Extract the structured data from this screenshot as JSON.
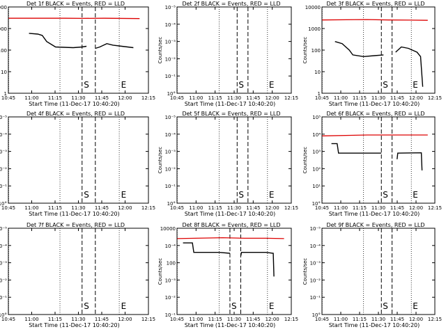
{
  "window": {
    "name": "RHESSI detector count-rate plots"
  },
  "colors": {
    "events": "#000000",
    "lld": "#dd0000",
    "frame": "#000000",
    "background": "#ffffff"
  },
  "chart_data": [
    {
      "id": "det-1f",
      "type": "line",
      "title": "Det 1f BLACK = Events, RED = LLD",
      "xlabel": "Start Time (11-Dec-17 10:40:20)",
      "ylabel": "Counts/sec",
      "xticks": [
        "10:45",
        "11:00",
        "11:15",
        "11:30",
        "11:45",
        "12:00",
        "12:15"
      ],
      "yticks": [
        "1",
        "10",
        "100",
        "1000",
        "10000"
      ],
      "ylim": [
        1,
        10000
      ],
      "grid": "vertical dotted",
      "markers": {
        "S": "S",
        "E": "E"
      },
      "series": [
        {
          "name": "LLD",
          "color": "red",
          "points": [
            [
              10.67,
              3000
            ],
            [
              11.3,
              3000
            ],
            [
              11.5,
              2950
            ],
            [
              11.75,
              3000
            ],
            [
              12.15,
              2900
            ]
          ]
        },
        {
          "name": "Events",
          "color": "black",
          "points": [
            [
              10.9,
              600
            ],
            [
              11.0,
              550
            ],
            [
              11.05,
              480
            ],
            [
              11.1,
              250
            ],
            [
              11.2,
              140
            ],
            [
              11.4,
              130
            ],
            [
              11.5,
              140
            ],
            [
              11.55,
              150
            ]
          ]
        },
        {
          "name": "Events",
          "color": "black",
          "points": [
            [
              11.65,
              120
            ],
            [
              11.7,
              140
            ],
            [
              11.78,
              200
            ],
            [
              11.85,
              170
            ],
            [
              11.95,
              150
            ],
            [
              12.08,
              130
            ]
          ]
        }
      ],
      "markerLines": {
        "dashed": [
          11.5,
          11.65
        ],
        "dotted": [
          10.67,
          11.25,
          11.92
        ]
      }
    },
    {
      "id": "det-2f",
      "type": "line",
      "title": "Det 2f BLACK = Events, RED = LLD",
      "xlabel": "Start Time (11-Dec-17 10:40:20)",
      "ylabel": "Counts/sec",
      "xticks": [
        "10:45",
        "11:00",
        "11:15",
        "11:30",
        "11:45",
        "12:00",
        "12:15"
      ],
      "yticks": [
        "10°",
        "10⁻¹",
        "10⁻²",
        "10⁻³",
        "10⁻⁴",
        "10⁻⁵"
      ],
      "ylim": [
        0,
        5
      ],
      "grid": "vertical dotted",
      "markers": {
        "S": "S",
        "E": "E"
      },
      "series": [],
      "markerLines": {
        "dashed": [
          11.5,
          11.65
        ],
        "dotted": [
          10.67,
          11.25,
          11.92
        ]
      }
    },
    {
      "id": "det-3f",
      "type": "line",
      "title": "Det 3f BLACK = Events, RED = LLD",
      "xlabel": "Start Time (11-Dec-17 10:40:20)",
      "ylabel": "Counts/sec",
      "xticks": [
        "10:45",
        "11:00",
        "11:15",
        "11:30",
        "11:45",
        "12:00",
        "12:15"
      ],
      "yticks": [
        "1",
        "10",
        "100",
        "1000",
        "10000"
      ],
      "ylim": [
        1,
        10000
      ],
      "grid": "vertical dotted",
      "markers": {
        "S": "S",
        "E": "E"
      },
      "series": [
        {
          "name": "LLD",
          "color": "red",
          "points": [
            [
              10.67,
              2500
            ],
            [
              11.3,
              2600
            ],
            [
              11.6,
              2500
            ],
            [
              11.9,
              2450
            ],
            [
              12.15,
              2400
            ]
          ]
        },
        {
          "name": "Events",
          "color": "black",
          "points": [
            [
              10.85,
              250
            ],
            [
              10.95,
              200
            ],
            [
              11.05,
              100
            ],
            [
              11.1,
              60
            ],
            [
              11.25,
              50
            ],
            [
              11.4,
              55
            ],
            [
              11.53,
              60
            ]
          ]
        },
        {
          "name": "Events",
          "color": "black",
          "points": [
            [
              11.7,
              80
            ],
            [
              11.78,
              140
            ],
            [
              11.88,
              120
            ],
            [
              12.0,
              80
            ],
            [
              12.05,
              50
            ],
            [
              12.08,
              2
            ]
          ]
        }
      ],
      "markerLines": {
        "dashed": [
          11.5,
          11.65
        ],
        "dotted": [
          10.67,
          11.25,
          11.92
        ]
      }
    },
    {
      "id": "det-4f",
      "type": "line",
      "title": "Det 4f BLACK = Events, RED = LLD",
      "xlabel": "Start Time (11-Dec-17 10:40:20)",
      "ylabel": "Counts/sec",
      "xticks": [
        "10:45",
        "11:00",
        "11:15",
        "11:30",
        "11:45",
        "12:00",
        "12:15"
      ],
      "yticks": [
        "10°",
        "10⁻¹",
        "10⁻²",
        "10⁻³",
        "10⁻⁴",
        "10⁻⁵"
      ],
      "ylim": [
        0,
        5
      ],
      "grid": "vertical dotted",
      "markers": {
        "S": "S",
        "E": "E"
      },
      "series": [],
      "markerLines": {
        "dashed": [
          11.5,
          11.65
        ],
        "dotted": [
          10.67,
          11.25,
          11.92
        ]
      }
    },
    {
      "id": "det-5f",
      "type": "line",
      "title": "Det 5f BLACK = Events, RED = LLD",
      "xlabel": "Start Time (11-Dec-17 10:40:20)",
      "ylabel": "Counts/sec",
      "xticks": [
        "10:45",
        "11:00",
        "11:15",
        "11:30",
        "11:45",
        "12:00",
        "12:15"
      ],
      "yticks": [
        "10°",
        "10⁻¹",
        "10⁻²",
        "10⁻³",
        "10⁻⁴",
        "10⁻⁵"
      ],
      "ylim": [
        0,
        5
      ],
      "grid": "vertical dotted",
      "markers": {
        "S": "S",
        "E": "E"
      },
      "series": [],
      "markerLines": {
        "dashed": [
          11.5,
          11.65
        ],
        "dotted": [
          10.67,
          11.25,
          11.92
        ]
      }
    },
    {
      "id": "det-6f",
      "type": "line",
      "title": "Det 6f BLACK = Events, RED = LLD",
      "xlabel": "Start Time (11-Dec-17 10:40:20)",
      "ylabel": "Counts/sec",
      "xticks": [
        "10:45",
        "11:00",
        "11:15",
        "11:30",
        "11:45",
        "12:00",
        "12:15"
      ],
      "yticks": [
        "10°",
        "10¹",
        "10²",
        "10³",
        "10⁴",
        "10⁵"
      ],
      "ylim": [
        0,
        5
      ],
      "grid": "vertical dotted",
      "markers": {
        "S": "S",
        "E": "E"
      },
      "series": [
        {
          "name": "LLD",
          "color": "red",
          "points": [
            [
              10.67,
              3.9
            ],
            [
              11.3,
              3.95
            ],
            [
              11.6,
              3.95
            ],
            [
              11.9,
              3.95
            ],
            [
              12.15,
              3.95
            ]
          ]
        },
        {
          "name": "Events",
          "color": "black",
          "points": [
            [
              10.8,
              3.45
            ],
            [
              10.88,
              3.45
            ],
            [
              10.9,
              2.9
            ],
            [
              11.25,
              2.9
            ],
            [
              11.5,
              2.9
            ]
          ]
        },
        {
          "name": "Events",
          "color": "black",
          "points": [
            [
              11.72,
              2.55
            ],
            [
              11.73,
              2.9
            ],
            [
              12.06,
              2.92
            ],
            [
              12.07,
              1.9
            ]
          ]
        }
      ],
      "markerLines": {
        "dashed": [
          11.5,
          11.65
        ],
        "dotted": [
          10.67,
          11.25,
          11.92
        ]
      }
    },
    {
      "id": "det-7f",
      "type": "line",
      "title": "Det 7f BLACK = Events, RED = LLD",
      "xlabel": "Start Time (11-Dec-17 10:40:20)",
      "ylabel": "Counts/sec",
      "xticks": [
        "10:45",
        "11:00",
        "11:15",
        "11:30",
        "11:45",
        "12:00",
        "12:15"
      ],
      "yticks": [
        "10°",
        "10⁻¹",
        "10⁻²",
        "10⁻³",
        "10⁻⁴",
        "10⁻⁵"
      ],
      "ylim": [
        0,
        5
      ],
      "grid": "vertical dotted",
      "markers": {
        "S": "S",
        "E": "E"
      },
      "series": [],
      "markerLines": {
        "dashed": [
          11.5,
          11.65
        ],
        "dotted": [
          10.67,
          11.25,
          11.92
        ]
      }
    },
    {
      "id": "det-8f",
      "type": "line",
      "title": "Det 8f BLACK = Events, RED = LLD",
      "xlabel": "Start Time (11-Dec-17 10:40:20)",
      "ylabel": "Counts/sec",
      "xticks": [
        "10:45",
        "11:00",
        "11:15",
        "11:30",
        "11:45",
        "12:00",
        "12:15"
      ],
      "yticks": [
        "10⁻¹",
        "10⁻²",
        "10⁻³",
        "100",
        "10⁻⁴",
        "10000"
      ],
      "ylim": [
        0,
        5
      ],
      "grid": "vertical dotted",
      "markers": {
        "S": "S",
        "E": "E"
      },
      "series": [
        {
          "name": "LLD",
          "color": "red",
          "points": [
            [
              10.67,
              4.4
            ],
            [
              11.3,
              4.45
            ],
            [
              11.6,
              4.42
            ],
            [
              11.9,
              4.42
            ],
            [
              12.15,
              4.4
            ]
          ]
        },
        {
          "name": "Events",
          "color": "black",
          "points": [
            [
              10.75,
              4.15
            ],
            [
              10.88,
              4.15
            ],
            [
              10.9,
              3.6
            ],
            [
              11.25,
              3.6
            ],
            [
              11.4,
              3.55
            ]
          ]
        },
        {
          "name": "Events",
          "color": "black",
          "points": [
            [
              11.55,
              3.4
            ],
            [
              11.56,
              3.6
            ],
            [
              11.9,
              3.6
            ],
            [
              12.0,
              3.55
            ],
            [
              12.01,
              2.2
            ]
          ]
        }
      ],
      "markerLines": {
        "dashed": [
          11.4,
          11.55
        ],
        "dotted": [
          10.67,
          11.25,
          11.92
        ]
      }
    },
    {
      "id": "det-9f",
      "type": "line",
      "title": "Det 9f BLACK = Events, RED = LLD",
      "xlabel": "Start Time (11-Dec-17 10:40:20)",
      "ylabel": "Counts/sec",
      "xticks": [
        "10:45",
        "11:00",
        "11:15",
        "11:30",
        "11:45",
        "12:00",
        "12:15"
      ],
      "yticks": [
        "10°",
        "10⁻¹",
        "10⁻²",
        "10⁻³",
        "10⁻⁴",
        "10⁻⁵"
      ],
      "ylim": [
        0,
        5
      ],
      "grid": "vertical dotted",
      "markers": {
        "S": "S",
        "E": "E"
      },
      "series": [],
      "markerLines": {
        "dashed": [
          11.5,
          11.65
        ],
        "dotted": [
          10.67,
          11.25,
          11.92
        ]
      }
    }
  ]
}
